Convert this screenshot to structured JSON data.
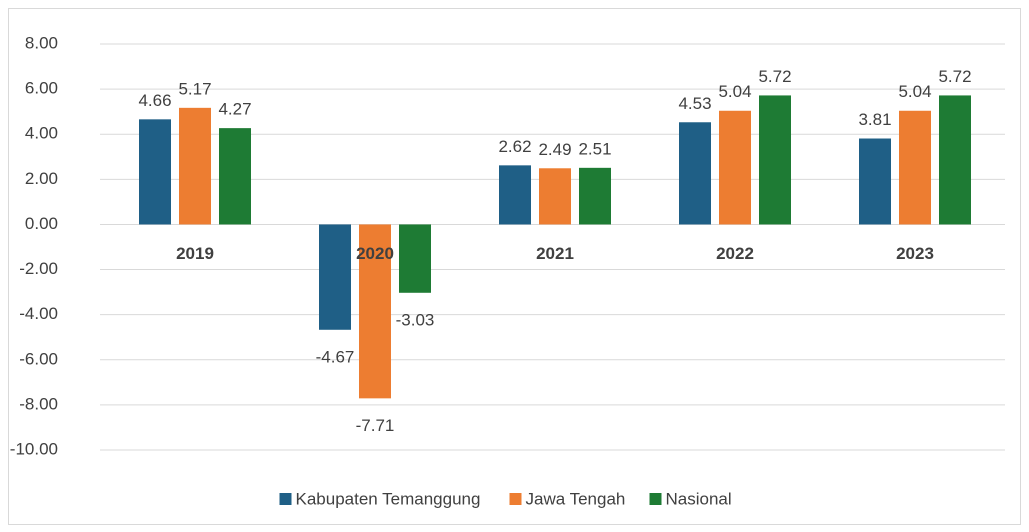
{
  "chart_data": {
    "type": "bar",
    "categories": [
      "2019",
      "2020",
      "2021",
      "2022",
      "2023"
    ],
    "series": [
      {
        "name": "Kabupaten Temanggung",
        "color": "#1f5f86",
        "values": [
          4.66,
          -4.67,
          2.62,
          4.53,
          3.81
        ]
      },
      {
        "name": "Jawa Tengah",
        "color": "#ed7d31",
        "values": [
          5.17,
          -7.71,
          2.49,
          5.04,
          5.04
        ]
      },
      {
        "name": "Nasional",
        "color": "#1e7b34",
        "values": [
          4.27,
          -3.03,
          2.51,
          5.72,
          5.72
        ]
      }
    ],
    "ylim": [
      -10,
      8
    ],
    "yticks": [
      {
        "value": -10,
        "label": "-10.00"
      },
      {
        "value": -8,
        "label": "-8.00"
      },
      {
        "value": -6,
        "label": "-6.00"
      },
      {
        "value": -4,
        "label": "-4.00"
      },
      {
        "value": -2,
        "label": "-2.00"
      },
      {
        "value": 0,
        "label": "0.00"
      },
      {
        "value": 2,
        "label": "2.00"
      },
      {
        "value": 4,
        "label": "4.00"
      },
      {
        "value": 6,
        "label": "6.00"
      },
      {
        "value": 8,
        "label": "8.00"
      }
    ],
    "grid": true,
    "legend": "bottom"
  }
}
